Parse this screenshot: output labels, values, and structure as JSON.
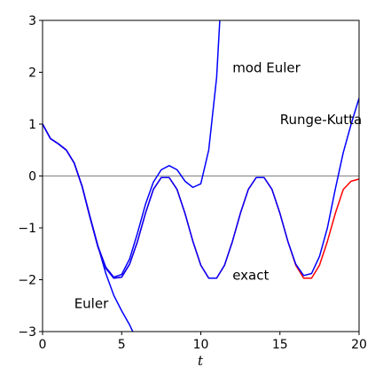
{
  "chart_data": {
    "type": "line",
    "title": "",
    "xlabel": "t",
    "ylabel": "",
    "xlim": [
      0,
      20
    ],
    "ylim": [
      -3,
      3
    ],
    "xticks": [
      0,
      5,
      10,
      15,
      20
    ],
    "yticks": [
      -3,
      -2,
      -1,
      0,
      1,
      2,
      3
    ],
    "grid": false,
    "zero_line": true,
    "series": [
      {
        "name": "Euler",
        "color": "#0000ff",
        "x": [
          0,
          0.5,
          1,
          1.5,
          2,
          2.5,
          3,
          3.5,
          4,
          4.5,
          5,
          5.5,
          5.7
        ],
        "y": [
          1.0,
          0.72,
          0.62,
          0.5,
          0.25,
          -0.2,
          -0.78,
          -1.35,
          -1.88,
          -2.3,
          -2.6,
          -2.87,
          -3.0
        ]
      },
      {
        "name": "mod Euler",
        "color": "#0000ff",
        "x": [
          0,
          0.5,
          1,
          1.5,
          2,
          2.5,
          3,
          3.5,
          4,
          4.5,
          5,
          5.5,
          6,
          6.5,
          7,
          7.5,
          8,
          8.5,
          9,
          9.5,
          10,
          10.5,
          11,
          11.2
        ],
        "y": [
          1.0,
          0.72,
          0.62,
          0.5,
          0.25,
          -0.2,
          -0.8,
          -1.35,
          -1.76,
          -1.95,
          -1.9,
          -1.6,
          -1.1,
          -0.55,
          -0.12,
          0.12,
          0.2,
          0.12,
          -0.1,
          -0.22,
          -0.15,
          0.5,
          1.9,
          3.0
        ]
      },
      {
        "name": "exact",
        "color": "#ff0000",
        "x": [
          0,
          0.5,
          1,
          1.5,
          2,
          2.5,
          3,
          3.5,
          4,
          4.5,
          5,
          5.5,
          6,
          6.5,
          7,
          7.5,
          8,
          8.5,
          9,
          9.5,
          10,
          10.5,
          11,
          11.5,
          12,
          12.5,
          13,
          13.5,
          14,
          14.5,
          15,
          15.5,
          16,
          16.5,
          17,
          17.5,
          18,
          18.5,
          19,
          19.5,
          20
        ],
        "y": [
          1.0,
          0.72,
          0.62,
          0.5,
          0.25,
          -0.2,
          -0.8,
          -1.37,
          -1.78,
          -1.97,
          -1.95,
          -1.7,
          -1.26,
          -0.72,
          -0.26,
          -0.03,
          -0.03,
          -0.26,
          -0.72,
          -1.26,
          -1.72,
          -1.97,
          -1.97,
          -1.72,
          -1.26,
          -0.72,
          -0.26,
          -0.03,
          -0.03,
          -0.26,
          -0.72,
          -1.26,
          -1.72,
          -1.97,
          -1.97,
          -1.72,
          -1.26,
          -0.72,
          -0.26,
          -0.1,
          -0.06
        ]
      },
      {
        "name": "Runge-Kutta",
        "color": "#0000ff",
        "x": [
          0,
          0.5,
          1,
          1.5,
          2,
          2.5,
          3,
          3.5,
          4,
          4.5,
          5,
          5.5,
          6,
          6.5,
          7,
          7.5,
          8,
          8.5,
          9,
          9.5,
          10,
          10.5,
          11,
          11.5,
          12,
          12.5,
          13,
          13.5,
          14,
          14.5,
          15,
          15.5,
          16,
          16.5,
          17,
          17.5,
          18,
          18.5,
          19,
          19.5,
          20
        ],
        "y": [
          1.0,
          0.72,
          0.62,
          0.5,
          0.25,
          -0.2,
          -0.8,
          -1.37,
          -1.78,
          -1.97,
          -1.95,
          -1.7,
          -1.26,
          -0.72,
          -0.26,
          -0.03,
          -0.03,
          -0.26,
          -0.72,
          -1.26,
          -1.72,
          -1.97,
          -1.97,
          -1.72,
          -1.26,
          -0.72,
          -0.26,
          -0.03,
          -0.03,
          -0.26,
          -0.72,
          -1.26,
          -1.7,
          -1.92,
          -1.88,
          -1.55,
          -1.0,
          -0.25,
          0.45,
          1.0,
          1.5
        ]
      }
    ],
    "annotations": [
      {
        "text": "mod Euler",
        "x": 12.0,
        "y": 2.0
      },
      {
        "text": "Runge-Kutta",
        "x": 15.0,
        "y": 1.0
      },
      {
        "text": "exact",
        "x": 12.0,
        "y": -2.0
      },
      {
        "text": "Euler",
        "x": 2.0,
        "y": -2.55
      }
    ]
  }
}
